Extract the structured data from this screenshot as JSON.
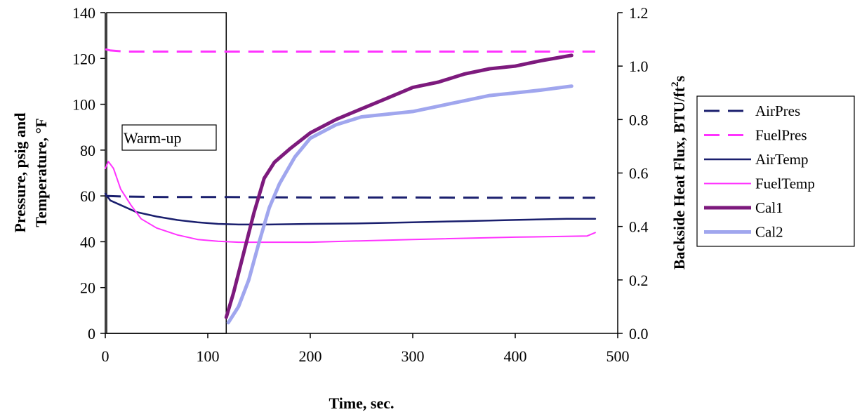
{
  "chart_data": {
    "type": "line",
    "xlabel": "Time, sec.",
    "ylabel_left": "Pressure, psig and Temperature, °F",
    "ylabel_left_lines": [
      "Pressure, psig and",
      "Temperature, °F"
    ],
    "ylabel_right": "Backside Heat Flux, BTU/ft²s",
    "ylabel_right_main": "Backside Heat Flux, BTU/ft",
    "ylabel_right_sup": "2",
    "ylabel_right_tail": "s",
    "xlim": [
      0,
      500
    ],
    "ylim_left": [
      0,
      140
    ],
    "ylim_right": [
      0,
      1.2
    ],
    "x_ticks": [
      "0",
      "100",
      "200",
      "300",
      "400",
      "500"
    ],
    "y_left_ticks": [
      "0",
      "20",
      "40",
      "60",
      "80",
      "100",
      "120",
      "140"
    ],
    "y_right_ticks": [
      "0.0",
      "0.2",
      "0.4",
      "0.6",
      "0.8",
      "1.0",
      "1.2"
    ],
    "grid": false,
    "legend_position": "right",
    "annotation": {
      "text": "Warm-up",
      "x_range": [
        0,
        118
      ]
    },
    "series": [
      {
        "name": "AirPres",
        "axis": "left",
        "style": "dashed",
        "color": "#1a1f6e",
        "width": 3,
        "points": [
          [
            0,
            60
          ],
          [
            20,
            59.7
          ],
          [
            60,
            59.5
          ],
          [
            118,
            59.5
          ],
          [
            200,
            59.3
          ],
          [
            300,
            59.3
          ],
          [
            400,
            59.2
          ],
          [
            478,
            59.2
          ]
        ]
      },
      {
        "name": "FuelPres",
        "axis": "left",
        "style": "dashed",
        "color": "#ff33ff",
        "width": 3,
        "points": [
          [
            0,
            124
          ],
          [
            5,
            123.5
          ],
          [
            20,
            123
          ],
          [
            100,
            123
          ],
          [
            200,
            123
          ],
          [
            300,
            123
          ],
          [
            400,
            123
          ],
          [
            478,
            123
          ]
        ]
      },
      {
        "name": "AirTemp",
        "axis": "left",
        "style": "solid",
        "color": "#1a1f6e",
        "width": 2.5,
        "points": [
          [
            0,
            61
          ],
          [
            5,
            58
          ],
          [
            15,
            56
          ],
          [
            30,
            53
          ],
          [
            50,
            51
          ],
          [
            70,
            49.5
          ],
          [
            90,
            48.5
          ],
          [
            110,
            47.8
          ],
          [
            130,
            47.5
          ],
          [
            160,
            47.5
          ],
          [
            200,
            47.8
          ],
          [
            250,
            48
          ],
          [
            300,
            48.5
          ],
          [
            350,
            49
          ],
          [
            400,
            49.5
          ],
          [
            450,
            50
          ],
          [
            478,
            50
          ]
        ]
      },
      {
        "name": "FuelTemp",
        "axis": "left",
        "style": "solid",
        "color": "#ff33ff",
        "width": 2,
        "points": [
          [
            0,
            72
          ],
          [
            3,
            75
          ],
          [
            8,
            72
          ],
          [
            15,
            63
          ],
          [
            25,
            56
          ],
          [
            35,
            50
          ],
          [
            50,
            46
          ],
          [
            70,
            43
          ],
          [
            90,
            41
          ],
          [
            110,
            40.2
          ],
          [
            130,
            39.8
          ],
          [
            200,
            39.8
          ],
          [
            300,
            41
          ],
          [
            400,
            42
          ],
          [
            470,
            42.5
          ],
          [
            478,
            44
          ]
        ]
      },
      {
        "name": "Cal1",
        "axis": "right",
        "style": "solid",
        "color": "#7d1a7d",
        "width": 5,
        "points": [
          [
            118,
            0.06
          ],
          [
            125,
            0.15
          ],
          [
            135,
            0.3
          ],
          [
            145,
            0.45
          ],
          [
            155,
            0.58
          ],
          [
            165,
            0.64
          ],
          [
            180,
            0.69
          ],
          [
            200,
            0.75
          ],
          [
            225,
            0.8
          ],
          [
            250,
            0.84
          ],
          [
            275,
            0.88
          ],
          [
            300,
            0.92
          ],
          [
            325,
            0.94
          ],
          [
            350,
            0.97
          ],
          [
            375,
            0.99
          ],
          [
            400,
            1.0
          ],
          [
            425,
            1.02
          ],
          [
            455,
            1.04
          ]
        ]
      },
      {
        "name": "Cal2",
        "axis": "right",
        "style": "solid",
        "color": "#a0a6ee",
        "width": 5,
        "points": [
          [
            120,
            0.04
          ],
          [
            130,
            0.1
          ],
          [
            140,
            0.2
          ],
          [
            150,
            0.34
          ],
          [
            160,
            0.47
          ],
          [
            170,
            0.56
          ],
          [
            185,
            0.66
          ],
          [
            200,
            0.73
          ],
          [
            225,
            0.78
          ],
          [
            250,
            0.81
          ],
          [
            275,
            0.82
          ],
          [
            300,
            0.83
          ],
          [
            325,
            0.85
          ],
          [
            350,
            0.87
          ],
          [
            375,
            0.89
          ],
          [
            400,
            0.9
          ],
          [
            425,
            0.91
          ],
          [
            455,
            0.925
          ]
        ]
      }
    ]
  }
}
